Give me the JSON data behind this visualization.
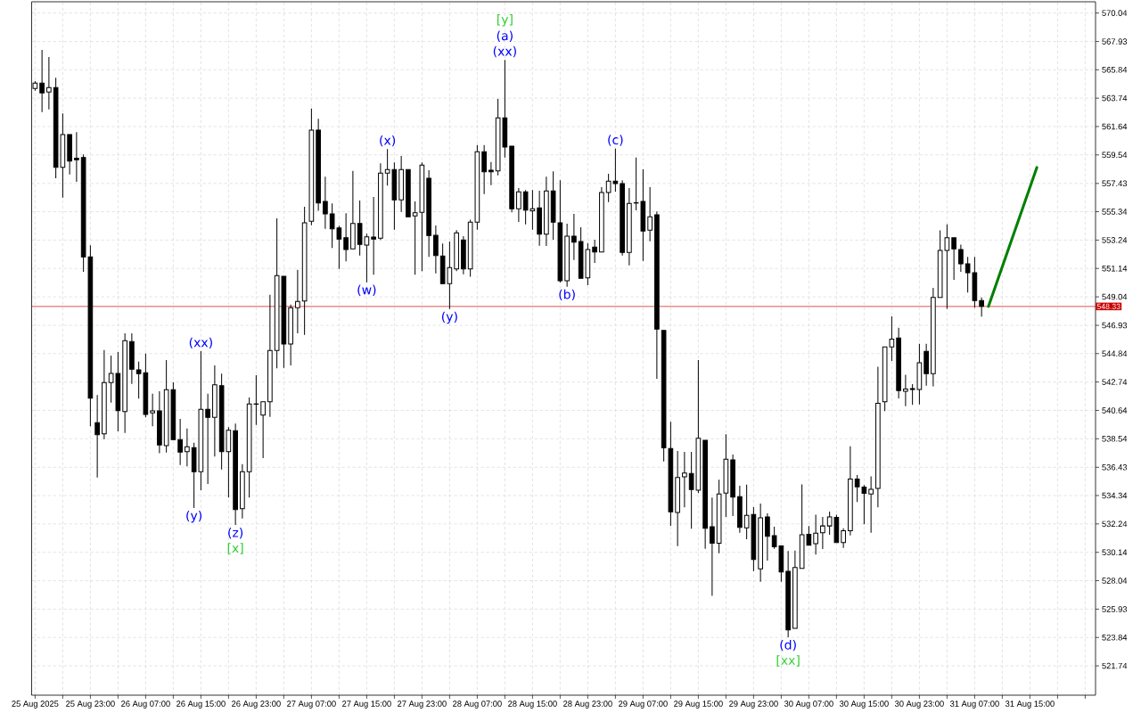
{
  "chart_data": {
    "type": "candlestick",
    "xlim": [
      "2025-08-25T14:30",
      "2025-09-01T00:30"
    ],
    "ylim": [
      519.57,
      570.87
    ],
    "yticks": [
      570.04,
      567.93,
      565.84,
      563.74,
      561.64,
      559.54,
      557.43,
      555.34,
      553.24,
      551.14,
      549.04,
      546.93,
      544.84,
      542.74,
      540.64,
      538.54,
      536.43,
      534.34,
      532.24,
      530.14,
      528.04,
      525.93,
      523.84,
      521.74
    ],
    "xticks": [
      {
        "value": "2025-08-25T15:00",
        "label": "25 Aug 2025"
      },
      {
        "value": "2025-08-25T19:00",
        "label": null
      },
      {
        "value": "2025-08-25T23:00",
        "label": "25 Aug 23:00"
      },
      {
        "value": "2025-08-26T03:00",
        "label": null
      },
      {
        "value": "2025-08-26T07:00",
        "label": "26 Aug 07:00"
      },
      {
        "value": "2025-08-26T11:00",
        "label": null
      },
      {
        "value": "2025-08-26T15:00",
        "label": "26 Aug 15:00"
      },
      {
        "value": "2025-08-26T19:00",
        "label": null
      },
      {
        "value": "2025-08-26T23:00",
        "label": "26 Aug 23:00"
      },
      {
        "value": "2025-08-27T03:00",
        "label": null
      },
      {
        "value": "2025-08-27T07:00",
        "label": "27 Aug 07:00"
      },
      {
        "value": "2025-08-27T11:00",
        "label": null
      },
      {
        "value": "2025-08-27T15:00",
        "label": "27 Aug 15:00"
      },
      {
        "value": "2025-08-27T19:00",
        "label": null
      },
      {
        "value": "2025-08-27T23:00",
        "label": "27 Aug 23:00"
      },
      {
        "value": "2025-08-28T03:00",
        "label": null
      },
      {
        "value": "2025-08-28T07:00",
        "label": "28 Aug 07:00"
      },
      {
        "value": "2025-08-28T11:00",
        "label": null
      },
      {
        "value": "2025-08-28T15:00",
        "label": "28 Aug 15:00"
      },
      {
        "value": "2025-08-28T19:00",
        "label": null
      },
      {
        "value": "2025-08-28T23:00",
        "label": "28 Aug 23:00"
      },
      {
        "value": "2025-08-29T03:00",
        "label": null
      },
      {
        "value": "2025-08-29T07:00",
        "label": "29 Aug 07:00"
      },
      {
        "value": "2025-08-29T11:00",
        "label": null
      },
      {
        "value": "2025-08-29T15:00",
        "label": "29 Aug 15:00"
      },
      {
        "value": "2025-08-29T19:00",
        "label": null
      },
      {
        "value": "2025-08-29T23:00",
        "label": "29 Aug 23:00"
      },
      {
        "value": "2025-08-30T03:00",
        "label": null
      },
      {
        "value": "2025-08-30T07:00",
        "label": "30 Aug 07:00"
      },
      {
        "value": "2025-08-30T11:00",
        "label": null
      },
      {
        "value": "2025-08-30T15:00",
        "label": "30 Aug 15:00"
      },
      {
        "value": "2025-08-30T19:00",
        "label": null
      },
      {
        "value": "2025-08-30T23:00",
        "label": "30 Aug 23:00"
      },
      {
        "value": "2025-08-31T03:00",
        "label": null
      },
      {
        "value": "2025-08-31T07:00",
        "label": "31 Aug 07:00"
      },
      {
        "value": "2025-08-31T11:00",
        "label": null
      },
      {
        "value": "2025-08-31T15:00",
        "label": "31 Aug 15:00"
      },
      {
        "value": "2025-08-31T19:00",
        "label": null
      },
      {
        "value": "2025-08-31T23:00",
        "label": null
      }
    ],
    "grid": true,
    "series": [
      {
        "type": "line",
        "color": "#008000",
        "x": [
          "2025-08-31T09:00",
          "2025-08-31T16:00"
        ],
        "values": [
          548.33,
          558.61
        ]
      },
      {
        "color": "#000000",
        "x": [
          "2025-08-25T15:00",
          "2025-08-25T16:00",
          "2025-08-25T17:00",
          "2025-08-25T18:00",
          "2025-08-25T19:00",
          "2025-08-25T20:00",
          "2025-08-25T21:00",
          "2025-08-25T22:00",
          "2025-08-25T23:00",
          "2025-08-26T00:00",
          "2025-08-26T01:00",
          "2025-08-26T02:00",
          "2025-08-26T03:00",
          "2025-08-26T04:00",
          "2025-08-26T05:00",
          "2025-08-26T06:00",
          "2025-08-26T07:00",
          "2025-08-26T08:00",
          "2025-08-26T09:00",
          "2025-08-26T10:00",
          "2025-08-26T11:00",
          "2025-08-26T12:00",
          "2025-08-26T13:00",
          "2025-08-26T14:00",
          "2025-08-26T15:00",
          "2025-08-26T16:00",
          "2025-08-26T17:00",
          "2025-08-26T18:00",
          "2025-08-26T19:00",
          "2025-08-26T20:00",
          "2025-08-26T21:00",
          "2025-08-26T22:00",
          "2025-08-26T23:00",
          "2025-08-27T00:00",
          "2025-08-27T01:00",
          "2025-08-27T02:00",
          "2025-08-27T03:00",
          "2025-08-27T04:00",
          "2025-08-27T05:00",
          "2025-08-27T06:00",
          "2025-08-27T07:00",
          "2025-08-27T08:00",
          "2025-08-27T09:00",
          "2025-08-27T10:00",
          "2025-08-27T11:00",
          "2025-08-27T12:00",
          "2025-08-27T13:00",
          "2025-08-27T14:00",
          "2025-08-27T15:00",
          "2025-08-27T16:00",
          "2025-08-27T17:00",
          "2025-08-27T18:00",
          "2025-08-27T19:00",
          "2025-08-27T20:00",
          "2025-08-27T21:00",
          "2025-08-27T22:00",
          "2025-08-27T23:00",
          "2025-08-28T00:00",
          "2025-08-28T01:00",
          "2025-08-28T02:00",
          "2025-08-28T03:00",
          "2025-08-28T04:00",
          "2025-08-28T05:00",
          "2025-08-28T06:00",
          "2025-08-28T07:00",
          "2025-08-28T08:00",
          "2025-08-28T09:00",
          "2025-08-28T10:00",
          "2025-08-28T11:00",
          "2025-08-28T12:00",
          "2025-08-28T13:00",
          "2025-08-28T14:00",
          "2025-08-28T15:00",
          "2025-08-28T16:00",
          "2025-08-28T17:00",
          "2025-08-28T18:00",
          "2025-08-28T19:00",
          "2025-08-28T20:00",
          "2025-08-28T21:00",
          "2025-08-28T22:00",
          "2025-08-28T23:00",
          "2025-08-29T00:00",
          "2025-08-29T01:00",
          "2025-08-29T02:00",
          "2025-08-29T03:00",
          "2025-08-29T04:00",
          "2025-08-29T05:00",
          "2025-08-29T06:00",
          "2025-08-29T07:00",
          "2025-08-29T08:00",
          "2025-08-29T09:00",
          "2025-08-29T10:00",
          "2025-08-29T11:00",
          "2025-08-29T12:00",
          "2025-08-29T13:00",
          "2025-08-29T14:00",
          "2025-08-29T15:00",
          "2025-08-29T16:00",
          "2025-08-29T17:00",
          "2025-08-29T18:00",
          "2025-08-29T19:00",
          "2025-08-29T20:00",
          "2025-08-29T21:00",
          "2025-08-29T22:00",
          "2025-08-29T23:00",
          "2025-08-30T00:00",
          "2025-08-30T01:00",
          "2025-08-30T02:00",
          "2025-08-30T03:00",
          "2025-08-30T04:00",
          "2025-08-30T05:00",
          "2025-08-30T06:00",
          "2025-08-30T07:00",
          "2025-08-30T08:00",
          "2025-08-30T09:00",
          "2025-08-30T10:00",
          "2025-08-30T11:00",
          "2025-08-30T12:00",
          "2025-08-30T13:00",
          "2025-08-30T14:00",
          "2025-08-30T15:00",
          "2025-08-30T16:00",
          "2025-08-30T17:00",
          "2025-08-30T18:00",
          "2025-08-30T19:00",
          "2025-08-30T20:00",
          "2025-08-30T21:00",
          "2025-08-30T22:00",
          "2025-08-30T23:00",
          "2025-08-31T00:00",
          "2025-08-31T01:00",
          "2025-08-31T02:00",
          "2025-08-31T03:00",
          "2025-08-31T04:00",
          "2025-08-31T05:00",
          "2025-08-31T06:00",
          "2025-08-31T07:00",
          "2025-08-31T08:00"
        ],
        "ohlc": [
          [
            564.45,
            565.0,
            564.3,
            564.85
          ],
          [
            564.85,
            567.31,
            562.71,
            564.13
          ],
          [
            564.19,
            566.78,
            562.91,
            564.52
          ],
          [
            564.52,
            565.25,
            557.82,
            558.63
          ],
          [
            558.63,
            562.61,
            556.38,
            561.05
          ],
          [
            561.05,
            561.05,
            558.1,
            559.09
          ],
          [
            559.29,
            561.22,
            557.55,
            559.18
          ],
          [
            559.35,
            559.58,
            550.89,
            551.99
          ],
          [
            551.99,
            552.85,
            539.46,
            541.55
          ],
          [
            539.73,
            541.77,
            535.68,
            538.84
          ],
          [
            538.91,
            545.11,
            538.51,
            542.69
          ],
          [
            542.69,
            544.7,
            541.22,
            543.37
          ],
          [
            543.37,
            544.96,
            539.09,
            540.62
          ],
          [
            540.56,
            546.34,
            538.97,
            545.79
          ],
          [
            545.73,
            546.34,
            542.6,
            543.68
          ],
          [
            543.64,
            544.24,
            541.51,
            543.35
          ],
          [
            543.42,
            544.84,
            540.12,
            540.34
          ],
          [
            540.45,
            541.88,
            539.46,
            540.6
          ],
          [
            540.6,
            542.05,
            537.48,
            538.08
          ],
          [
            538.03,
            544.37,
            537.52,
            542.17
          ],
          [
            542.17,
            542.72,
            538.47,
            538.47
          ],
          [
            538.47,
            540.01,
            536.6,
            537.55
          ],
          [
            537.59,
            539.3,
            536.5,
            537.95
          ],
          [
            537.88,
            538.25,
            533.42,
            536.1
          ],
          [
            536.1,
            545.02,
            534.74,
            540.72
          ],
          [
            540.72,
            541.88,
            535.19,
            540.12
          ],
          [
            540.12,
            543.97,
            537.22,
            542.53
          ],
          [
            542.47,
            543.35,
            536.27,
            537.59
          ],
          [
            537.59,
            539.4,
            534.19,
            539.17
          ],
          [
            539.13,
            539.66,
            532.16,
            533.3
          ],
          [
            533.37,
            536.67,
            532.64,
            536.1
          ],
          [
            536.1,
            541.6,
            534.19,
            541.11
          ],
          [
            541.1,
            543.24,
            539.57,
            541.12
          ],
          [
            540.29,
            541.28,
            537.11,
            541.28
          ],
          [
            541.28,
            549.2,
            540.16,
            545.07
          ],
          [
            545.07,
            554.85,
            543.75,
            550.61
          ],
          [
            550.56,
            550.56,
            543.79,
            545.55
          ],
          [
            545.55,
            548.47,
            543.97,
            548.23
          ],
          [
            548.23,
            551.04,
            546.34,
            548.7
          ],
          [
            548.73,
            555.7,
            546.23,
            554.52
          ],
          [
            554.63,
            562.98,
            554.34,
            561.38
          ],
          [
            561.38,
            562.21,
            555.4,
            555.99
          ],
          [
            556.1,
            557.93,
            554.08,
            555.18
          ],
          [
            555.18,
            555.95,
            552.65,
            554.08
          ],
          [
            554.14,
            554.3,
            551.11,
            553.31
          ],
          [
            553.42,
            555.22,
            551.66,
            552.54
          ],
          [
            552.59,
            558.36,
            552.59,
            554.47
          ],
          [
            554.47,
            556.17,
            552.1,
            552.92
          ],
          [
            552.87,
            553.71,
            550.12,
            553.48
          ],
          [
            553.46,
            556.43,
            550.67,
            553.31
          ],
          [
            553.38,
            558.92,
            553.25,
            558.19
          ],
          [
            558.19,
            559.97,
            557.27,
            558.45
          ],
          [
            558.45,
            558.98,
            554.01,
            556.21
          ],
          [
            556.21,
            559.46,
            555.33,
            558.45
          ],
          [
            558.45,
            558.45,
            554.96,
            554.96
          ],
          [
            555.03,
            556.1,
            550.67,
            555.26
          ],
          [
            555.29,
            558.98,
            550.94,
            558.78
          ],
          [
            557.81,
            558.41,
            551.99,
            553.57
          ],
          [
            553.59,
            554.32,
            550.78,
            552.1
          ],
          [
            552.06,
            552.98,
            550.01,
            550.01
          ],
          [
            550.01,
            553.13,
            548.14,
            551.2
          ],
          [
            551.11,
            553.97,
            550.94,
            553.77
          ],
          [
            553.25,
            553.53,
            550.71,
            551.11
          ],
          [
            551.11,
            554.74,
            550.52,
            554.56
          ],
          [
            554.56,
            560.27,
            554.01,
            559.77
          ],
          [
            559.77,
            560.27,
            556.65,
            558.3
          ],
          [
            558.41,
            559.02,
            557.31,
            558.3
          ],
          [
            558.36,
            563.68,
            558.03,
            562.28
          ],
          [
            562.28,
            566.57,
            559.35,
            560.12
          ],
          [
            560.19,
            560.19,
            555.29,
            555.55
          ],
          [
            555.55,
            557.09,
            554.58,
            556.81
          ],
          [
            556.81,
            556.94,
            554.41,
            555.46
          ],
          [
            555.4,
            556.94,
            554.01,
            555.55
          ],
          [
            555.62,
            556.89,
            552.82,
            553.68
          ],
          [
            553.68,
            557.93,
            552.8,
            556.87
          ],
          [
            556.87,
            558.32,
            553.27,
            554.56
          ],
          [
            554.52,
            557.66,
            550.1,
            550.23
          ],
          [
            550.23,
            554.45,
            549.79,
            553.53
          ],
          [
            553.53,
            555.18,
            551.77,
            553.09
          ],
          [
            553.13,
            554.19,
            550.41,
            550.41
          ],
          [
            550.45,
            553.02,
            549.9,
            552.54
          ],
          [
            552.72,
            553.27,
            551.55,
            552.36
          ],
          [
            552.36,
            557.15,
            552.36,
            556.76
          ],
          [
            556.76,
            558.14,
            556.05,
            557.6
          ],
          [
            557.6,
            560.01,
            556.83,
            557.42
          ],
          [
            557.42,
            557.66,
            552.1,
            552.32
          ],
          [
            552.32,
            557.09,
            551.37,
            555.95
          ],
          [
            556.0,
            559.35,
            555.44,
            555.98
          ],
          [
            556.1,
            558.47,
            551.7,
            553.91
          ],
          [
            553.97,
            557.15,
            553.15,
            554.96
          ],
          [
            555.11,
            555.36,
            542.98,
            546.65
          ],
          [
            546.56,
            546.56,
            536.87,
            537.86
          ],
          [
            537.82,
            539.79,
            532.1,
            533.13
          ],
          [
            533.09,
            537.64,
            530.6,
            535.68
          ],
          [
            535.72,
            537.57,
            533.46,
            536.01
          ],
          [
            535.97,
            537.57,
            531.88,
            534.78
          ],
          [
            534.73,
            544.36,
            534.52,
            538.58
          ],
          [
            538.43,
            538.43,
            530.4,
            531.92
          ],
          [
            532.03,
            534.19,
            526.93,
            530.82
          ],
          [
            530.82,
            535.51,
            530.07,
            534.45
          ],
          [
            534.52,
            538.87,
            532.76,
            537.02
          ],
          [
            536.98,
            537.38,
            532.82,
            534.23
          ],
          [
            534.26,
            535.07,
            531.59,
            531.99
          ],
          [
            531.95,
            535.15,
            531.11,
            532.87
          ],
          [
            532.94,
            533.48,
            528.75,
            529.61
          ],
          [
            528.91,
            533.75,
            527.96,
            532.69
          ],
          [
            532.76,
            533.02,
            529.52,
            531.33
          ],
          [
            531.37,
            532.03,
            530.4,
            530.55
          ],
          [
            530.62,
            530.62,
            527.96,
            528.69
          ],
          [
            528.73,
            530.23,
            523.86,
            524.4
          ],
          [
            524.51,
            530.27,
            524.51,
            529.02
          ],
          [
            528.95,
            535.17,
            528.95,
            531.44
          ],
          [
            531.48,
            532.09,
            530.66,
            530.66
          ],
          [
            530.78,
            532.93,
            529.97,
            531.55
          ],
          [
            531.59,
            532.76,
            530.38,
            532.09
          ],
          [
            532.09,
            533.15,
            531.44,
            532.76
          ],
          [
            532.72,
            532.92,
            530.87,
            530.87
          ],
          [
            530.87,
            531.91,
            530.47,
            531.74
          ],
          [
            531.74,
            537.98,
            531.39,
            535.56
          ],
          [
            535.56,
            535.86,
            533.87,
            534.99
          ],
          [
            534.97,
            535.11,
            532.22,
            534.5
          ],
          [
            534.45,
            535.75,
            531.58,
            534.81
          ],
          [
            534.87,
            543.87,
            533.46,
            541.16
          ],
          [
            541.28,
            545.33,
            540.58,
            545.33
          ],
          [
            545.33,
            547.59,
            544.3,
            545.92
          ],
          [
            545.99,
            546.75,
            541.52,
            542.11
          ],
          [
            542.06,
            543.28,
            540.95,
            542.22
          ],
          [
            542.25,
            542.58,
            541.05,
            542.18
          ],
          [
            542.18,
            545.57,
            541.09,
            544.16
          ],
          [
            545.01,
            545.57,
            542.46,
            543.35
          ],
          [
            543.35,
            549.71,
            542.41,
            549.0
          ],
          [
            549.0,
            553.95,
            549.0,
            552.47
          ],
          [
            552.47,
            554.4,
            548.16,
            553.41
          ],
          [
            553.41,
            553.41,
            550.3,
            552.59
          ],
          [
            552.54,
            552.9,
            550.89,
            551.48
          ],
          [
            551.48,
            552.0,
            549.36,
            550.82
          ],
          [
            550.82,
            552.0,
            548.23,
            548.77
          ],
          [
            548.77,
            549.0,
            547.57,
            548.33
          ]
        ]
      }
    ],
    "ref_lines": [
      {
        "axis": "y",
        "value": 548.33,
        "label": "548.33",
        "color": "#c80000"
      }
    ],
    "annotations": [
      {
        "text": "(y)",
        "x": "2025-08-26T14:00",
        "y": 533.42
      },
      {
        "text": "(xx)",
        "x": "2025-08-26T15:00",
        "y": 545.02
      },
      {
        "text": "(z)",
        "x": "2025-08-26T20:00",
        "y": 532.16
      },
      {
        "text": "[x]",
        "x": "2025-08-26T20:00",
        "y": 532.16
      },
      {
        "text": "(w)",
        "x": "2025-08-27T15:00",
        "y": 550.12
      },
      {
        "text": "(x)",
        "x": "2025-08-27T18:00",
        "y": 559.97
      },
      {
        "text": "(y)",
        "x": "2025-08-28T03:00",
        "y": 548.14
      },
      {
        "text": "(xx)",
        "x": "2025-08-28T11:00",
        "y": 566.57
      },
      {
        "text": "(a)",
        "x": "2025-08-28T11:00",
        "y": 566.57
      },
      {
        "text": "[y]",
        "x": "2025-08-28T11:00",
        "y": 566.57
      },
      {
        "text": "(b)",
        "x": "2025-08-28T20:00",
        "y": 549.79
      },
      {
        "text": "(c)",
        "x": "2025-08-29T03:00",
        "y": 560.01
      },
      {
        "text": "(d)",
        "x": "2025-08-30T04:00",
        "y": 523.86
      },
      {
        "text": "[xx]",
        "x": "2025-08-30T04:00",
        "y": 523.86
      }
    ]
  }
}
